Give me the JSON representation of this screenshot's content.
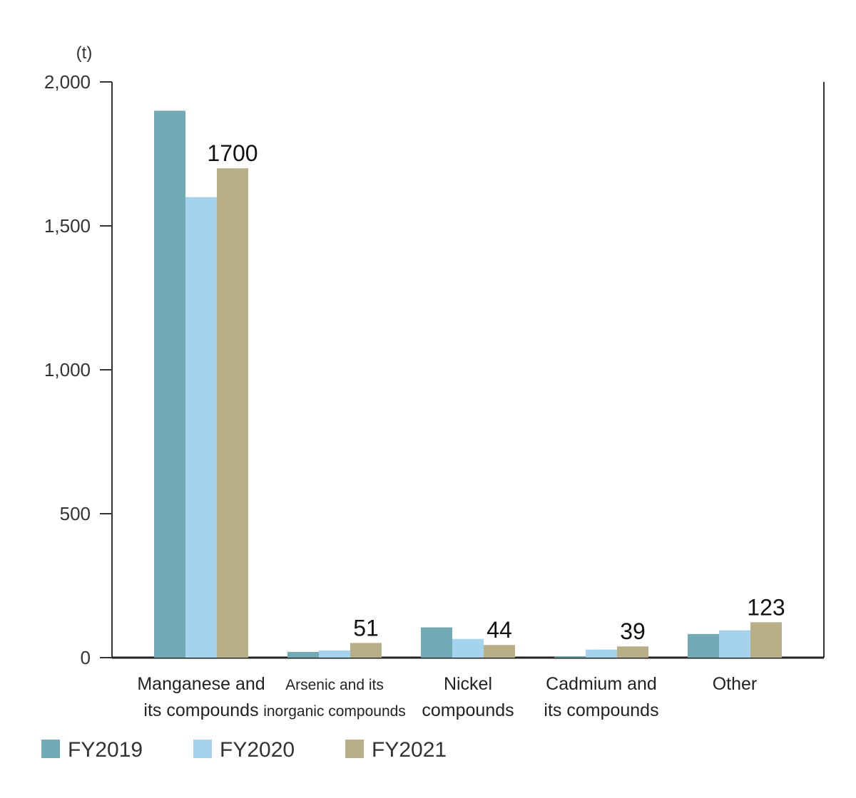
{
  "chart_data": {
    "type": "bar",
    "unit_label": "(t)",
    "y_ticks": [
      "2,000",
      "1,500",
      "1,000",
      "500",
      "0"
    ],
    "y_tick_values": [
      2000,
      1500,
      1000,
      500,
      0
    ],
    "ylim": [
      0,
      2000
    ],
    "grid": false,
    "legend_position": "bottom-left",
    "categories": [
      [
        "Manganese and",
        "its compounds"
      ],
      [
        "Arsenic and its",
        "inorganic compounds"
      ],
      [
        "Nickel",
        "compounds"
      ],
      [
        "Cadmium and",
        "its compounds"
      ],
      [
        "Other"
      ]
    ],
    "series": [
      {
        "name": "FY2019",
        "color": "#72abb5",
        "values": [
          1900,
          20,
          105,
          5,
          82
        ]
      },
      {
        "name": "FY2020",
        "color": "#a6d3ec",
        "values": [
          1600,
          25,
          65,
          28,
          95
        ]
      },
      {
        "name": "FY2021",
        "color": "#b8ae88",
        "values": [
          1700,
          51,
          44,
          39,
          123
        ]
      }
    ],
    "data_labels": [
      {
        "category": 0,
        "series": 2,
        "text": "1700"
      },
      {
        "category": 1,
        "series": 2,
        "text": "51"
      },
      {
        "category": 2,
        "series": 2,
        "text": "44"
      },
      {
        "category": 3,
        "series": 2,
        "text": "39"
      },
      {
        "category": 4,
        "series": 2,
        "text": "123"
      }
    ]
  }
}
